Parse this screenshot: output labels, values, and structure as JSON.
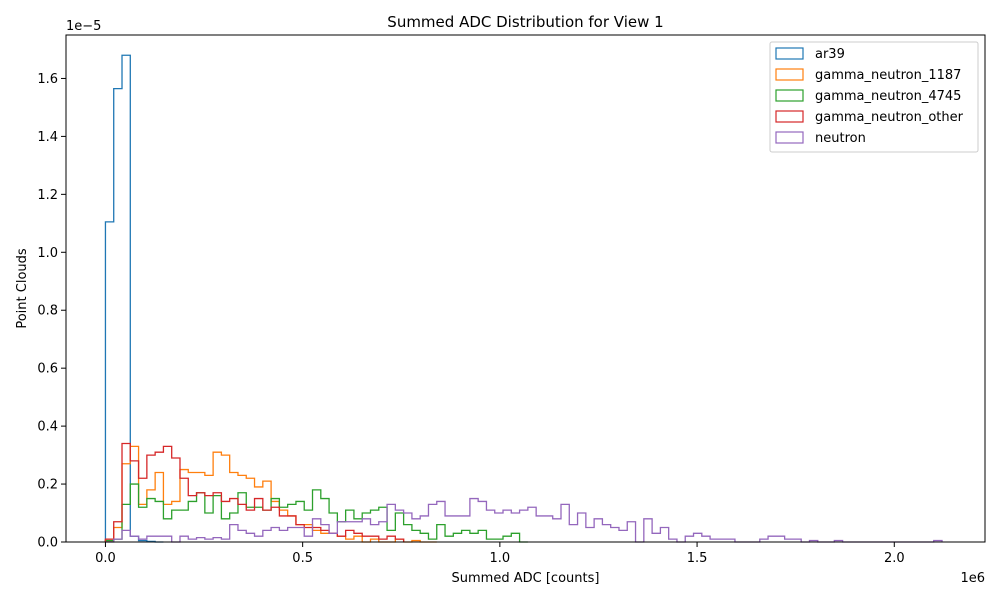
{
  "chart_data": {
    "type": "histogram",
    "title": "Summed ADC Distribution for View 1",
    "xlabel": "Summed ADC [counts]",
    "ylabel": "Point Clouds",
    "x_offset_label": "1e6",
    "y_offset_label": "1e−5",
    "x_scale": 1000000,
    "y_scale": 1e-05,
    "xlim": [
      -0.1,
      2.23
    ],
    "ylim": [
      0,
      1.75
    ],
    "x_ticks": [
      0.0,
      0.5,
      1.0,
      1.5,
      2.0
    ],
    "x_tick_labels": [
      "0.0",
      "0.5",
      "1.0",
      "1.5",
      "2.0"
    ],
    "y_ticks": [
      0.0,
      0.2,
      0.4,
      0.6,
      0.8,
      1.0,
      1.2,
      1.4,
      1.6
    ],
    "y_tick_labels": [
      "0.0",
      "0.2",
      "0.4",
      "0.6",
      "0.8",
      "1.0",
      "1.2",
      "1.4",
      "1.6"
    ],
    "legend_position": "top-right",
    "series": [
      {
        "name": "ar39",
        "color": "#1f77b4",
        "bins": [
          0.0,
          0.021,
          0.042,
          0.063,
          0.084,
          0.105,
          0.126,
          0.147
        ],
        "values": [
          1.105,
          1.565,
          1.68,
          0.02,
          0.005,
          0.002,
          0.0
        ]
      },
      {
        "name": "gamma_neutron_1187",
        "color": "#ff7f0e",
        "bins": [
          0.0,
          0.021,
          0.042,
          0.063,
          0.084,
          0.105,
          0.126,
          0.147,
          0.168,
          0.189,
          0.21,
          0.231,
          0.252,
          0.273,
          0.294,
          0.315,
          0.336,
          0.357,
          0.378,
          0.399,
          0.42,
          0.441,
          0.462,
          0.483,
          0.504,
          0.525,
          0.546,
          0.567,
          0.588,
          0.609,
          0.63,
          0.651,
          0.672,
          0.693,
          0.714,
          0.735,
          0.756,
          0.777,
          0.798,
          0.819,
          0.84
        ],
        "values": [
          0.005,
          0.05,
          0.27,
          0.33,
          0.13,
          0.18,
          0.24,
          0.13,
          0.14,
          0.25,
          0.24,
          0.24,
          0.23,
          0.31,
          0.3,
          0.24,
          0.23,
          0.22,
          0.19,
          0.21,
          0.14,
          0.11,
          0.09,
          0.06,
          0.06,
          0.04,
          0.03,
          0.03,
          0.02,
          0.01,
          0.02,
          0.0,
          0.01,
          0.0,
          0.0,
          0.01,
          0.0,
          0.005,
          0.0,
          0.0
        ]
      },
      {
        "name": "gamma_neutron_4745",
        "color": "#2ca02c",
        "bins": [
          0.0,
          0.021,
          0.042,
          0.063,
          0.084,
          0.105,
          0.126,
          0.147,
          0.168,
          0.189,
          0.21,
          0.231,
          0.252,
          0.273,
          0.294,
          0.315,
          0.336,
          0.357,
          0.378,
          0.399,
          0.42,
          0.441,
          0.462,
          0.483,
          0.504,
          0.525,
          0.546,
          0.567,
          0.588,
          0.609,
          0.63,
          0.651,
          0.672,
          0.693,
          0.714,
          0.735,
          0.756,
          0.777,
          0.798,
          0.819,
          0.84,
          0.861,
          0.882,
          0.903,
          0.924,
          0.945,
          0.966,
          0.987,
          1.008,
          1.029,
          1.05,
          1.071
        ],
        "values": [
          0.005,
          0.01,
          0.13,
          0.2,
          0.12,
          0.15,
          0.14,
          0.08,
          0.11,
          0.11,
          0.14,
          0.17,
          0.1,
          0.16,
          0.08,
          0.1,
          0.17,
          0.12,
          0.12,
          0.11,
          0.15,
          0.12,
          0.13,
          0.14,
          0.11,
          0.18,
          0.15,
          0.1,
          0.07,
          0.11,
          0.08,
          0.1,
          0.11,
          0.12,
          0.04,
          0.1,
          0.06,
          0.04,
          0.03,
          0.01,
          0.06,
          0.02,
          0.03,
          0.04,
          0.03,
          0.04,
          0.01,
          0.01,
          0.02,
          0.03,
          0.0
        ]
      },
      {
        "name": "gamma_neutron_other",
        "color": "#d62728",
        "bins": [
          0.0,
          0.021,
          0.042,
          0.063,
          0.084,
          0.105,
          0.126,
          0.147,
          0.168,
          0.189,
          0.21,
          0.231,
          0.252,
          0.273,
          0.294,
          0.315,
          0.336,
          0.357,
          0.378,
          0.399,
          0.42,
          0.441,
          0.462,
          0.483,
          0.504,
          0.525,
          0.546,
          0.567,
          0.588,
          0.609,
          0.63,
          0.651,
          0.672,
          0.693,
          0.714,
          0.735,
          0.756
        ],
        "values": [
          0.01,
          0.07,
          0.34,
          0.28,
          0.22,
          0.3,
          0.31,
          0.33,
          0.29,
          0.22,
          0.16,
          0.17,
          0.16,
          0.17,
          0.14,
          0.15,
          0.13,
          0.11,
          0.15,
          0.11,
          0.12,
          0.09,
          0.09,
          0.06,
          0.05,
          0.05,
          0.04,
          0.03,
          0.02,
          0.04,
          0.03,
          0.02,
          0.02,
          0.01,
          0.02,
          0.01
        ]
      },
      {
        "name": "neutron",
        "color": "#9467bd",
        "bins": [
          0.0,
          0.021,
          0.042,
          0.063,
          0.084,
          0.105,
          0.126,
          0.147,
          0.168,
          0.189,
          0.21,
          0.231,
          0.252,
          0.273,
          0.294,
          0.315,
          0.336,
          0.357,
          0.378,
          0.399,
          0.42,
          0.441,
          0.462,
          0.483,
          0.504,
          0.525,
          0.546,
          0.567,
          0.588,
          0.609,
          0.63,
          0.651,
          0.672,
          0.693,
          0.714,
          0.735,
          0.756,
          0.777,
          0.798,
          0.819,
          0.84,
          0.861,
          0.882,
          0.903,
          0.924,
          0.945,
          0.966,
          0.987,
          1.008,
          1.029,
          1.05,
          1.071,
          1.092,
          1.113,
          1.134,
          1.155,
          1.176,
          1.197,
          1.218,
          1.239,
          1.26,
          1.281,
          1.302,
          1.323,
          1.344,
          1.365,
          1.386,
          1.407,
          1.428,
          1.449,
          1.47,
          1.491,
          1.512,
          1.533,
          1.554,
          1.575,
          1.596,
          1.617,
          1.638,
          1.659,
          1.68,
          1.701,
          1.722,
          1.743,
          1.764,
          1.785,
          1.806,
          1.827,
          1.848,
          1.869,
          1.89,
          1.911,
          1.932,
          1.953,
          1.974,
          1.995,
          2.016,
          2.037,
          2.058,
          2.079,
          2.1,
          2.121
        ],
        "values": [
          0.0,
          0.01,
          0.04,
          0.02,
          0.01,
          0.02,
          0.02,
          0.02,
          0.0,
          0.02,
          0.01,
          0.015,
          0.01,
          0.015,
          0.01,
          0.06,
          0.04,
          0.03,
          0.02,
          0.04,
          0.05,
          0.04,
          0.05,
          0.05,
          0.02,
          0.08,
          0.06,
          0.03,
          0.07,
          0.07,
          0.07,
          0.08,
          0.06,
          0.07,
          0.13,
          0.11,
          0.1,
          0.08,
          0.09,
          0.13,
          0.14,
          0.09,
          0.09,
          0.09,
          0.15,
          0.14,
          0.11,
          0.1,
          0.11,
          0.1,
          0.11,
          0.12,
          0.09,
          0.09,
          0.08,
          0.13,
          0.06,
          0.1,
          0.05,
          0.08,
          0.06,
          0.05,
          0.04,
          0.07,
          0.0,
          0.08,
          0.03,
          0.05,
          0.01,
          0.0,
          0.02,
          0.03,
          0.02,
          0.01,
          0.01,
          0.01,
          0.0,
          0.0,
          0.0,
          0.01,
          0.02,
          0.02,
          0.01,
          0.01,
          0.0,
          0.005,
          0.0,
          0.0,
          0.005,
          0.0,
          0.0,
          0.0,
          0.0,
          0.0,
          0.0,
          0.0,
          0.0,
          0.0,
          0.0,
          0.0,
          0.005
        ]
      }
    ]
  }
}
